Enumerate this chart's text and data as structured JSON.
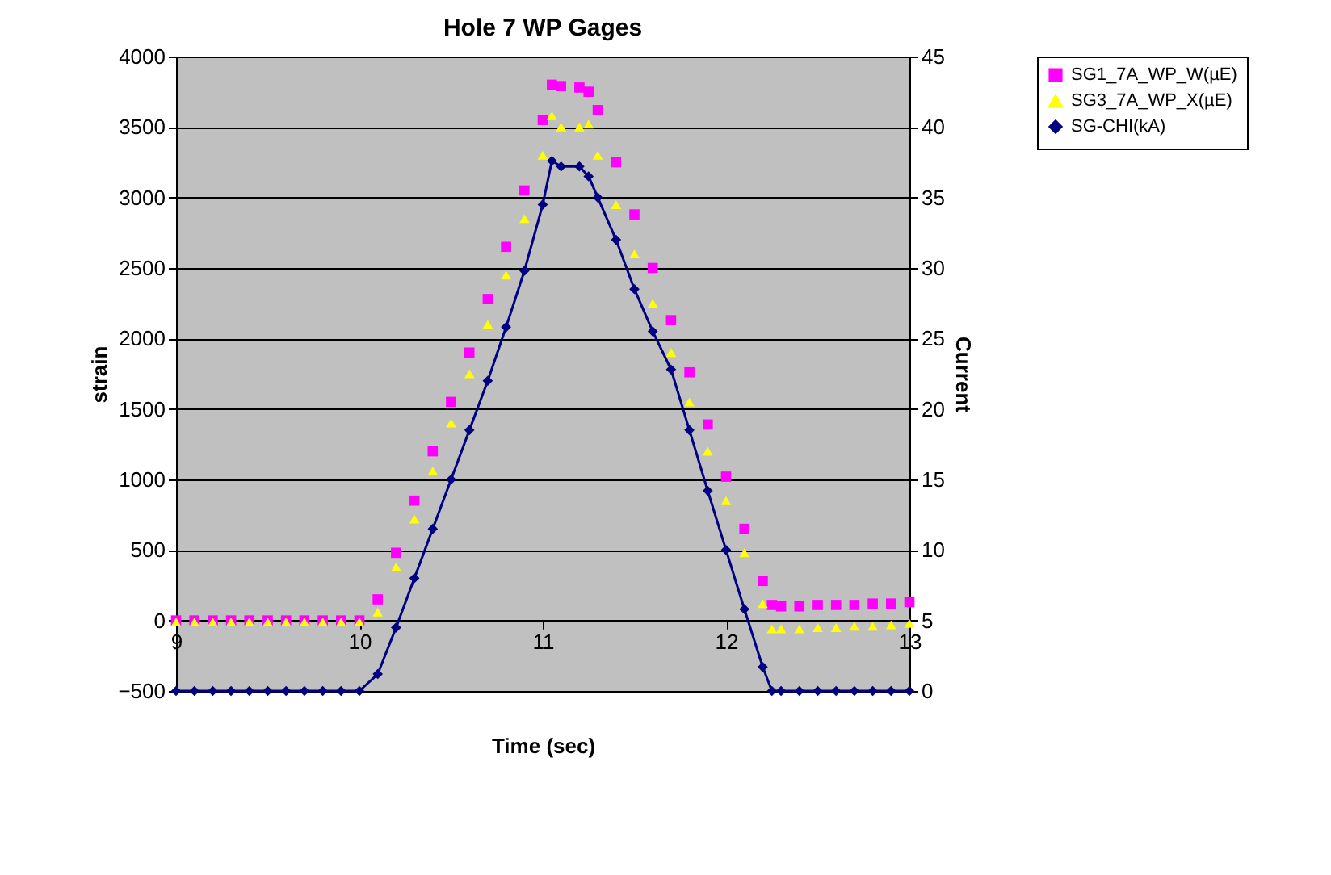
{
  "chart_data": {
    "type": "line",
    "title": "Hole 7 WP Gages",
    "xlabel": "Time (sec)",
    "ylabel": "strain",
    "y2label": "Current",
    "x": [
      9.0,
      9.1,
      9.2,
      9.3,
      9.4,
      9.5,
      9.6,
      9.7,
      9.8,
      9.9,
      10.0,
      10.1,
      10.2,
      10.3,
      10.4,
      10.5,
      10.6,
      10.7,
      10.8,
      10.9,
      11.0,
      11.05,
      11.1,
      11.2,
      11.25,
      11.3,
      11.4,
      11.5,
      11.6,
      11.7,
      11.8,
      11.9,
      12.0,
      12.1,
      12.2,
      12.25,
      12.3,
      12.4,
      12.5,
      12.6,
      12.7,
      12.8,
      12.9,
      13.0
    ],
    "series": [
      {
        "name": "SG1_7A_WP_W(µE)",
        "type": "scatter",
        "marker": "square",
        "color": "#ff00ff",
        "values": [
          0,
          0,
          0,
          0,
          0,
          0,
          0,
          0,
          0,
          0,
          0,
          150,
          480,
          850,
          1200,
          1550,
          1900,
          2280,
          2650,
          3050,
          3550,
          3800,
          3790,
          3780,
          3750,
          3620,
          3250,
          2880,
          2500,
          2130,
          1760,
          1390,
          1020,
          650,
          280,
          110,
          100,
          100,
          110,
          110,
          110,
          120,
          120,
          130
        ]
      },
      {
        "name": "SG3_7A_WP_X(µE)",
        "type": "scatter",
        "marker": "triangle",
        "color": "#ffff00",
        "values": [
          -10,
          -10,
          -10,
          -10,
          -10,
          -10,
          -10,
          -10,
          -10,
          -10,
          -10,
          60,
          380,
          720,
          1060,
          1400,
          1750,
          2100,
          2450,
          2850,
          3300,
          3580,
          3500,
          3500,
          3520,
          3300,
          2950,
          2600,
          2250,
          1900,
          1550,
          1200,
          850,
          480,
          120,
          -60,
          -60,
          -60,
          -50,
          -50,
          -40,
          -40,
          -30,
          -20
        ]
      },
      {
        "name": "SG-CHI(kA)",
        "marker": "diamond",
        "line_style": "solid",
        "axis": "y2",
        "color": "#000080",
        "values": [
          0,
          0,
          0,
          0,
          0,
          0,
          0,
          0,
          0,
          0,
          0,
          1.2,
          4.5,
          8,
          11.5,
          15,
          18.5,
          22,
          25.8,
          29.8,
          34.5,
          37.6,
          37.2,
          37.2,
          36.5,
          35,
          32,
          28.5,
          25.5,
          22.8,
          18.5,
          14.2,
          10,
          5.8,
          1.7,
          0,
          0,
          0,
          0,
          0,
          0,
          0,
          0,
          0
        ]
      }
    ],
    "xlim": [
      9,
      13
    ],
    "xticks": [
      9,
      10,
      11,
      12,
      13
    ],
    "ylim": [
      -500,
      4000
    ],
    "yticks": [
      -500,
      0,
      500,
      1000,
      1500,
      2000,
      2500,
      3000,
      3500,
      4000
    ],
    "y2lim": [
      0,
      45
    ],
    "y2ticks": [
      0,
      5,
      10,
      15,
      20,
      25,
      30,
      35,
      40,
      45
    ],
    "grid": "y",
    "legend": "right"
  }
}
